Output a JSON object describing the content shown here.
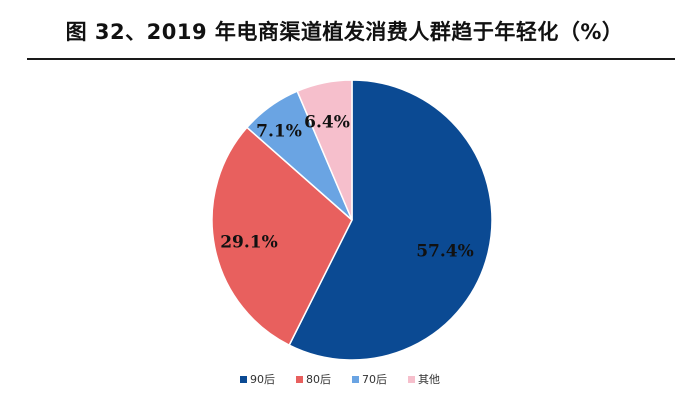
{
  "chart_data": {
    "type": "pie",
    "title": "图 32、2019 年电商渠道植发消费人群趋于年轻化（%）",
    "slices": [
      {
        "label": "90后",
        "value": 57.4,
        "display": "57.4%",
        "color": "#0b4a93"
      },
      {
        "label": "80后",
        "value": 29.1,
        "display": "29.1%",
        "color": "#e8605e"
      },
      {
        "label": "70后",
        "value": 7.1,
        "display": "7.1%",
        "color": "#6aa4e3"
      },
      {
        "label": "其他",
        "value": 6.4,
        "display": "6.4%",
        "color": "#f6bfcc"
      }
    ],
    "start": "12 o'clock",
    "direction": "clockwise",
    "legend_position": "bottom"
  }
}
